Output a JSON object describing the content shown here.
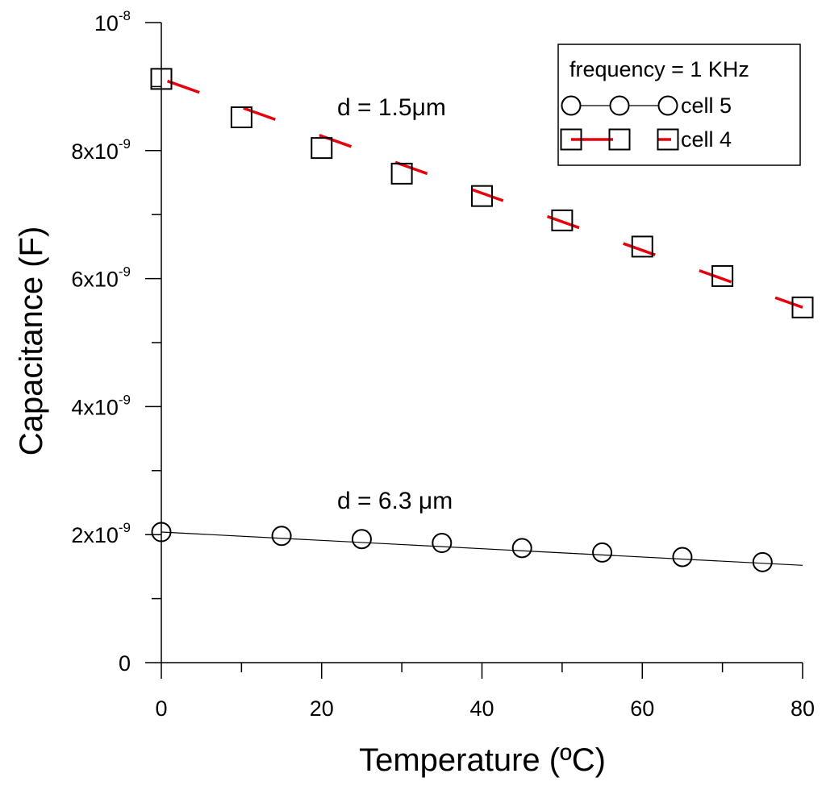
{
  "chart_data": {
    "type": "scatter",
    "xlabel": "Temperature (ºC)",
    "ylabel": "Capacitance (F)",
    "xlim": [
      0,
      80
    ],
    "ylim": [
      0,
      1e-08
    ],
    "x_ticks": [
      {
        "value": 0,
        "label": "0"
      },
      {
        "value": 20,
        "label": "20"
      },
      {
        "value": 40,
        "label": "40"
      },
      {
        "value": 60,
        "label": "60"
      },
      {
        "value": 80,
        "label": "80"
      }
    ],
    "y_ticks": [
      {
        "value": 0,
        "mantissa": "0",
        "exponent": ""
      },
      {
        "value": 2e-09,
        "mantissa": "2x10",
        "exponent": "-9"
      },
      {
        "value": 4e-09,
        "mantissa": "4x10",
        "exponent": "-9"
      },
      {
        "value": 6e-09,
        "mantissa": "6x10",
        "exponent": "-9"
      },
      {
        "value": 8e-09,
        "mantissa": "8x10",
        "exponent": "-9"
      },
      {
        "value": 1e-08,
        "mantissa": "10",
        "exponent": "-8"
      }
    ],
    "legend": {
      "title": "frequency = 1 KHz",
      "position": "top-right"
    },
    "series": [
      {
        "name": "cell 5",
        "marker": "circle",
        "line_color": "#000000",
        "line_style": "solid-thin",
        "fit": {
          "x": [
            0,
            80
          ],
          "y": [
            2.04e-09,
            1.52e-09
          ]
        },
        "points": [
          {
            "x": 0,
            "y": 2.04e-09
          },
          {
            "x": 15,
            "y": 1.98e-09
          },
          {
            "x": 25,
            "y": 1.93e-09
          },
          {
            "x": 35,
            "y": 1.87e-09
          },
          {
            "x": 45,
            "y": 1.79e-09
          },
          {
            "x": 55,
            "y": 1.72e-09
          },
          {
            "x": 65,
            "y": 1.65e-09
          },
          {
            "x": 75,
            "y": 1.57e-09
          }
        ]
      },
      {
        "name": "cell 4",
        "marker": "square",
        "line_color": "#e8000b",
        "line_style": "dashed-thick",
        "fit": {
          "x": [
            0,
            80
          ],
          "y": [
            9.12e-09,
            5.55e-09
          ]
        },
        "points": [
          {
            "x": 0,
            "y": 9.12e-09
          },
          {
            "x": 10,
            "y": 8.52e-09
          },
          {
            "x": 20,
            "y": 8.04e-09
          },
          {
            "x": 30,
            "y": 7.64e-09
          },
          {
            "x": 40,
            "y": 7.29e-09
          },
          {
            "x": 50,
            "y": 6.91e-09
          },
          {
            "x": 60,
            "y": 6.5e-09
          },
          {
            "x": 70,
            "y": 6.04e-09
          },
          {
            "x": 80,
            "y": 5.55e-09
          }
        ]
      }
    ],
    "annotations": [
      {
        "text": "d = 1.5μm",
        "x": 27,
        "y": 8.7e-09
      },
      {
        "text": "d = 6.3 μm",
        "x": 27,
        "y": 2.5e-09
      }
    ]
  }
}
